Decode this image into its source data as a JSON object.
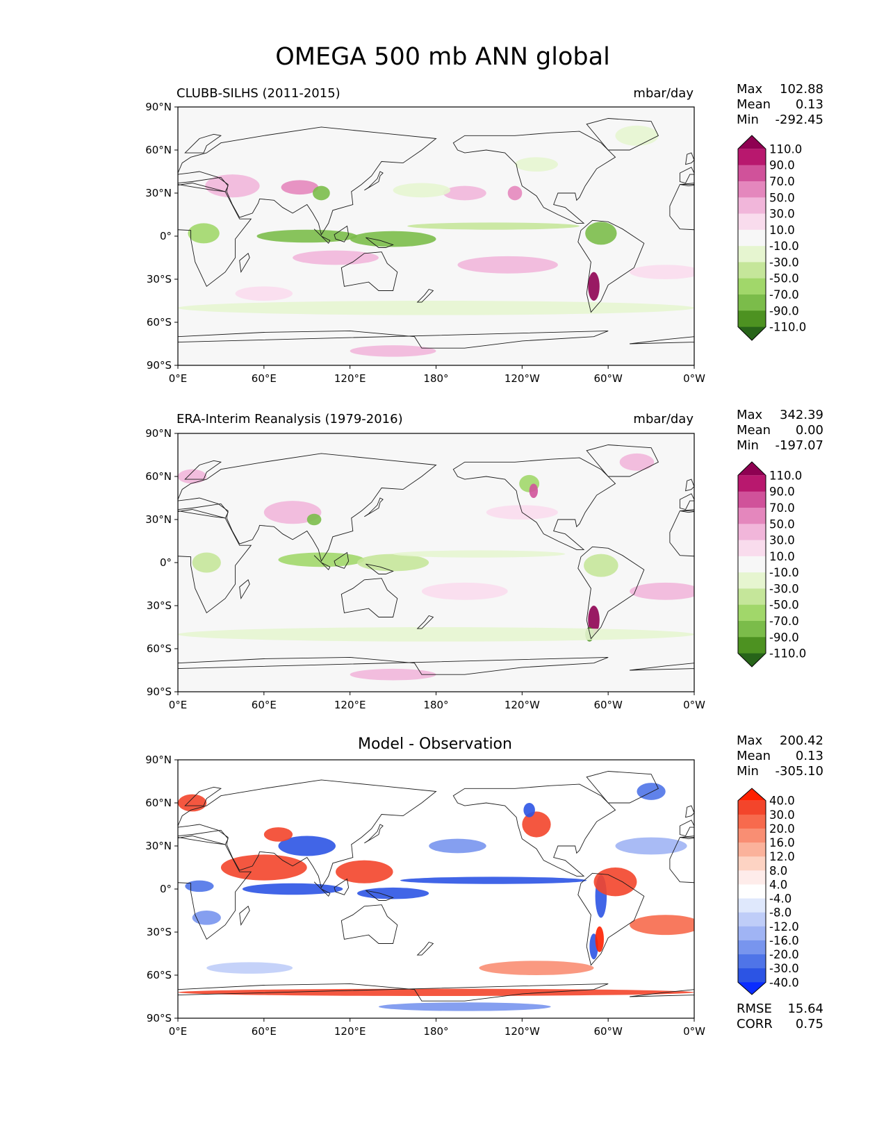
{
  "figure": {
    "title": "OMEGA 500 mb ANN global"
  },
  "axes": {
    "lat_ticks": [
      "90°N",
      "60°N",
      "30°N",
      "0°",
      "30°S",
      "60°S",
      "90°S"
    ],
    "lon_ticks": [
      "0°E",
      "60°E",
      "120°E",
      "180°",
      "120°W",
      "60°W",
      "0°W"
    ]
  },
  "chart_data": [
    {
      "type": "heatmap",
      "title": "CLUBB-SILHS (2011-2015)",
      "units": "mbar/day",
      "xlim": [
        0,
        360
      ],
      "ylim": [
        -90,
        90
      ],
      "stats": {
        "labels": [
          "Max",
          "Mean",
          "Min"
        ],
        "values": [
          "102.88",
          "0.13",
          "-292.45"
        ]
      },
      "colorbar": {
        "levels": [
          "110.0",
          "90.0",
          "70.0",
          "50.0",
          "30.0",
          "10.0",
          "-10.0",
          "-30.0",
          "-50.0",
          "-70.0",
          "-90.0",
          "-110.0"
        ],
        "colors": [
          "#8e0152",
          "#b8186e",
          "#d0529a",
          "#e487bd",
          "#f1b6da",
          "#f9dced",
          "#f7f7f7",
          "#e6f5d0",
          "#c5e69a",
          "#a1d76a",
          "#7bbc4a",
          "#4d9221",
          "#276419"
        ]
      },
      "features": [
        {
          "lon": 38,
          "lat": 35,
          "w": 38,
          "h": 16,
          "v": 35
        },
        {
          "lon": 85,
          "lat": 34,
          "w": 26,
          "h": 10,
          "v": 60
        },
        {
          "lon": 100,
          "lat": 30,
          "w": 12,
          "h": 10,
          "v": -80
        },
        {
          "lon": 200,
          "lat": 30,
          "w": 30,
          "h": 10,
          "v": 40
        },
        {
          "lon": 235,
          "lat": 30,
          "w": 10,
          "h": 10,
          "v": 65
        },
        {
          "lon": 170,
          "lat": 32,
          "w": 40,
          "h": 10,
          "v": -25
        },
        {
          "lon": 90,
          "lat": 0,
          "w": 70,
          "h": 9,
          "v": -75
        },
        {
          "lon": 150,
          "lat": -2,
          "w": 60,
          "h": 11,
          "v": -90
        },
        {
          "lon": 220,
          "lat": 7,
          "w": 120,
          "h": 5,
          "v": -35
        },
        {
          "lon": 295,
          "lat": 2,
          "w": 22,
          "h": 16,
          "v": -80
        },
        {
          "lon": 18,
          "lat": 2,
          "w": 22,
          "h": 14,
          "v": -60
        },
        {
          "lon": 110,
          "lat": -15,
          "w": 60,
          "h": 10,
          "v": 30
        },
        {
          "lon": 230,
          "lat": -20,
          "w": 70,
          "h": 12,
          "v": 30
        },
        {
          "lon": 340,
          "lat": -25,
          "w": 50,
          "h": 10,
          "v": 25
        },
        {
          "lon": 290,
          "lat": -35,
          "w": 8,
          "h": 20,
          "v": 110
        },
        {
          "lon": 180,
          "lat": -50,
          "w": 360,
          "h": 10,
          "v": -20
        },
        {
          "lon": 150,
          "lat": -80,
          "w": 60,
          "h": 8,
          "v": 40
        },
        {
          "lon": 320,
          "lat": 70,
          "w": 30,
          "h": 14,
          "v": -30
        },
        {
          "lon": 60,
          "lat": -40,
          "w": 40,
          "h": 10,
          "v": 15
        },
        {
          "lon": 250,
          "lat": 50,
          "w": 30,
          "h": 10,
          "v": -20
        }
      ]
    },
    {
      "type": "heatmap",
      "title": "ERA-Interim Reanalysis (1979-2016)",
      "units": "mbar/day",
      "xlim": [
        0,
        360
      ],
      "ylim": [
        -90,
        90
      ],
      "stats": {
        "labels": [
          "Max",
          "Mean",
          "Min"
        ],
        "values": [
          "342.39",
          "0.00",
          "-197.07"
        ]
      },
      "colorbar": {
        "levels": [
          "110.0",
          "90.0",
          "70.0",
          "50.0",
          "30.0",
          "10.0",
          "-10.0",
          "-30.0",
          "-50.0",
          "-70.0",
          "-90.0",
          "-110.0"
        ],
        "colors": [
          "#8e0152",
          "#b8186e",
          "#d0529a",
          "#e487bd",
          "#f1b6da",
          "#f9dced",
          "#f7f7f7",
          "#e6f5d0",
          "#c5e69a",
          "#a1d76a",
          "#7bbc4a",
          "#4d9221",
          "#276419"
        ]
      },
      "features": [
        {
          "lon": 80,
          "lat": 35,
          "w": 40,
          "h": 16,
          "v": 40
        },
        {
          "lon": 95,
          "lat": 30,
          "w": 10,
          "h": 8,
          "v": -80
        },
        {
          "lon": 100,
          "lat": 2,
          "w": 60,
          "h": 10,
          "v": -55
        },
        {
          "lon": 150,
          "lat": 0,
          "w": 50,
          "h": 12,
          "v": -50
        },
        {
          "lon": 210,
          "lat": 6,
          "w": 120,
          "h": 5,
          "v": -30
        },
        {
          "lon": 295,
          "lat": -2,
          "w": 24,
          "h": 16,
          "v": -45
        },
        {
          "lon": 20,
          "lat": 0,
          "w": 20,
          "h": 14,
          "v": -40
        },
        {
          "lon": 200,
          "lat": -20,
          "w": 60,
          "h": 12,
          "v": 25
        },
        {
          "lon": 340,
          "lat": -20,
          "w": 50,
          "h": 12,
          "v": 30
        },
        {
          "lon": 290,
          "lat": -40,
          "w": 8,
          "h": 20,
          "v": 110
        },
        {
          "lon": 287,
          "lat": -50,
          "w": 6,
          "h": 10,
          "v": -110
        },
        {
          "lon": 245,
          "lat": 55,
          "w": 14,
          "h": 12,
          "v": -60
        },
        {
          "lon": 248,
          "lat": 50,
          "w": 6,
          "h": 10,
          "v": 80
        },
        {
          "lon": 180,
          "lat": -50,
          "w": 360,
          "h": 10,
          "v": -20
        },
        {
          "lon": 150,
          "lat": -78,
          "w": 60,
          "h": 8,
          "v": 40
        },
        {
          "lon": 320,
          "lat": 70,
          "w": 24,
          "h": 12,
          "v": 40
        },
        {
          "lon": 10,
          "lat": 60,
          "w": 20,
          "h": 10,
          "v": 30
        },
        {
          "lon": 240,
          "lat": 35,
          "w": 50,
          "h": 10,
          "v": 20
        }
      ]
    },
    {
      "type": "heatmap",
      "title": "Model - Observation",
      "xlim": [
        0,
        360
      ],
      "ylim": [
        -90,
        90
      ],
      "stats": {
        "labels": [
          "Max",
          "Mean",
          "Min"
        ],
        "values": [
          "200.42",
          "0.13",
          "-305.10"
        ]
      },
      "metrics": {
        "labels": [
          "RMSE",
          "CORR"
        ],
        "values": [
          "15.64",
          "0.75"
        ]
      },
      "colorbar": {
        "levels": [
          "40.0",
          "30.0",
          "20.0",
          "16.0",
          "12.0",
          "8.0",
          "4.0",
          "-4.0",
          "-8.0",
          "-12.0",
          "-16.0",
          "-20.0",
          "-30.0",
          "-40.0"
        ],
        "colors": [
          "#ff2000",
          "#f3452b",
          "#f76a4d",
          "#f98e73",
          "#fbb29b",
          "#fdd3c3",
          "#feecea",
          "#ffffff",
          "#dfe8fc",
          "#bfcdf8",
          "#a0b4f4",
          "#7895ee",
          "#4f74e8",
          "#2c54e4",
          "#0a2cff"
        ]
      },
      "features": [
        {
          "lon": 80,
          "lat": 0,
          "w": 70,
          "h": 8,
          "v": -40
        },
        {
          "lon": 150,
          "lat": -3,
          "w": 50,
          "h": 8,
          "v": -35
        },
        {
          "lon": 220,
          "lat": 6,
          "w": 130,
          "h": 5,
          "v": -35
        },
        {
          "lon": 60,
          "lat": 15,
          "w": 60,
          "h": 18,
          "v": 30
        },
        {
          "lon": 130,
          "lat": 12,
          "w": 40,
          "h": 16,
          "v": 30
        },
        {
          "lon": 90,
          "lat": 30,
          "w": 40,
          "h": 14,
          "v": -40
        },
        {
          "lon": 70,
          "lat": 38,
          "w": 20,
          "h": 10,
          "v": 35
        },
        {
          "lon": 295,
          "lat": -5,
          "w": 8,
          "h": 30,
          "v": -40
        },
        {
          "lon": 305,
          "lat": 5,
          "w": 30,
          "h": 20,
          "v": 30
        },
        {
          "lon": 290,
          "lat": -40,
          "w": 6,
          "h": 18,
          "v": -40
        },
        {
          "lon": 294,
          "lat": -35,
          "w": 6,
          "h": 18,
          "v": 40
        },
        {
          "lon": 250,
          "lat": 45,
          "w": 20,
          "h": 18,
          "v": 30
        },
        {
          "lon": 245,
          "lat": 55,
          "w": 8,
          "h": 10,
          "v": -40
        },
        {
          "lon": 330,
          "lat": 30,
          "w": 50,
          "h": 12,
          "v": -16
        },
        {
          "lon": 195,
          "lat": 30,
          "w": 40,
          "h": 10,
          "v": -20
        },
        {
          "lon": 15,
          "lat": 2,
          "w": 20,
          "h": 8,
          "v": -30
        },
        {
          "lon": 20,
          "lat": -20,
          "w": 20,
          "h": 10,
          "v": -20
        },
        {
          "lon": 340,
          "lat": -25,
          "w": 50,
          "h": 14,
          "v": 20
        },
        {
          "lon": 250,
          "lat": -55,
          "w": 80,
          "h": 10,
          "v": 16
        },
        {
          "lon": 50,
          "lat": -55,
          "w": 60,
          "h": 8,
          "v": -12
        },
        {
          "lon": 180,
          "lat": -72,
          "w": 360,
          "h": 5,
          "v": 30
        },
        {
          "lon": 200,
          "lat": -82,
          "w": 120,
          "h": 6,
          "v": -20
        },
        {
          "lon": 330,
          "lat": 68,
          "w": 20,
          "h": 12,
          "v": -30
        },
        {
          "lon": 10,
          "lat": 60,
          "w": 20,
          "h": 12,
          "v": 30
        }
      ]
    }
  ]
}
